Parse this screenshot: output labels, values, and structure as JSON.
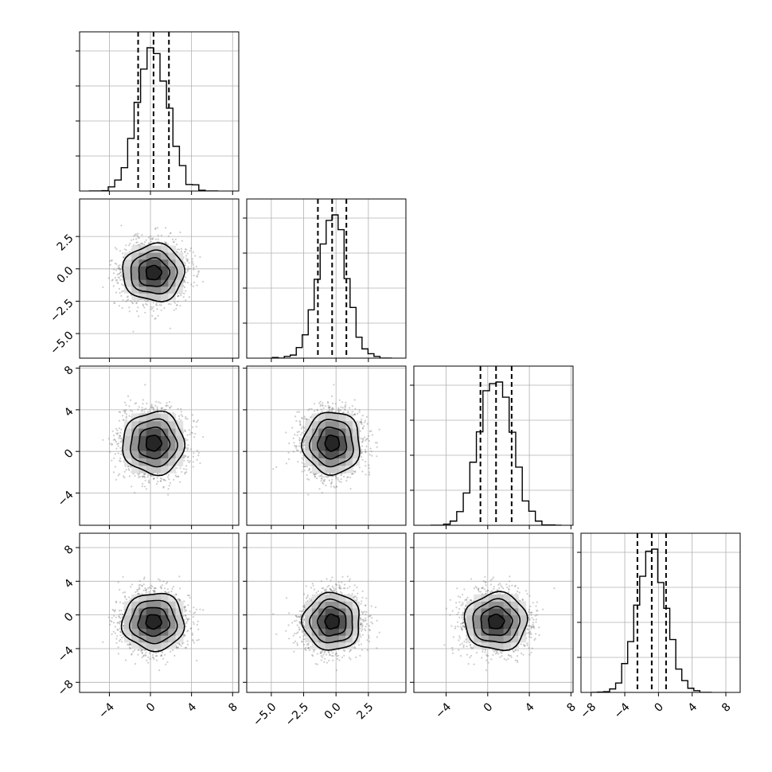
{
  "chart_data": {
    "type": "corner",
    "title": "",
    "parameters": [
      {
        "name": "",
        "mean": 0.3,
        "std": 1.5,
        "range": [
          -6.9,
          8.6
        ],
        "quantiles": [
          -1.2,
          0.3,
          1.8
        ],
        "ticks": [
          -4,
          0,
          4,
          8
        ],
        "tick_labels": [
          "−4",
          "0",
          "4",
          "8"
        ],
        "hist_ylim": [
          0,
          1
        ]
      },
      {
        "name": "",
        "mean": -0.3,
        "std": 1.1,
        "range": [
          -6.9,
          5.4
        ],
        "quantiles": [
          -1.4,
          -0.3,
          0.8
        ],
        "ticks": [
          -5.0,
          -2.5,
          0.0,
          2.5
        ],
        "tick_labels": [
          "−5.0",
          "−2.5",
          "0.0",
          "2.5"
        ],
        "hist_ylim": [
          0,
          1
        ]
      },
      {
        "name": "",
        "mean": 0.8,
        "std": 1.5,
        "range": [
          -7.1,
          8.2
        ],
        "quantiles": [
          -0.7,
          0.8,
          2.3
        ],
        "ticks": [
          -4,
          0,
          4,
          8
        ],
        "tick_labels": [
          "−4",
          "0",
          "4",
          "8"
        ],
        "hist_ylim": [
          0,
          1
        ]
      },
      {
        "name": "",
        "mean": -0.8,
        "std": 1.7,
        "range": [
          -9.2,
          9.7
        ],
        "quantiles": [
          -2.5,
          -0.8,
          0.9
        ],
        "ticks": [
          -8,
          -4,
          0,
          4,
          8
        ],
        "tick_labels": [
          "−8",
          "−4",
          "0",
          "4",
          "8"
        ],
        "hist_ylim": [
          0,
          1
        ]
      }
    ],
    "histogram": {
      "bins": 20,
      "style": "step",
      "quantile_lines": "dashed"
    },
    "joint": {
      "levels": 4,
      "style": "scatter + density + contours",
      "samples": 2500
    },
    "grid": true,
    "legend": ""
  }
}
